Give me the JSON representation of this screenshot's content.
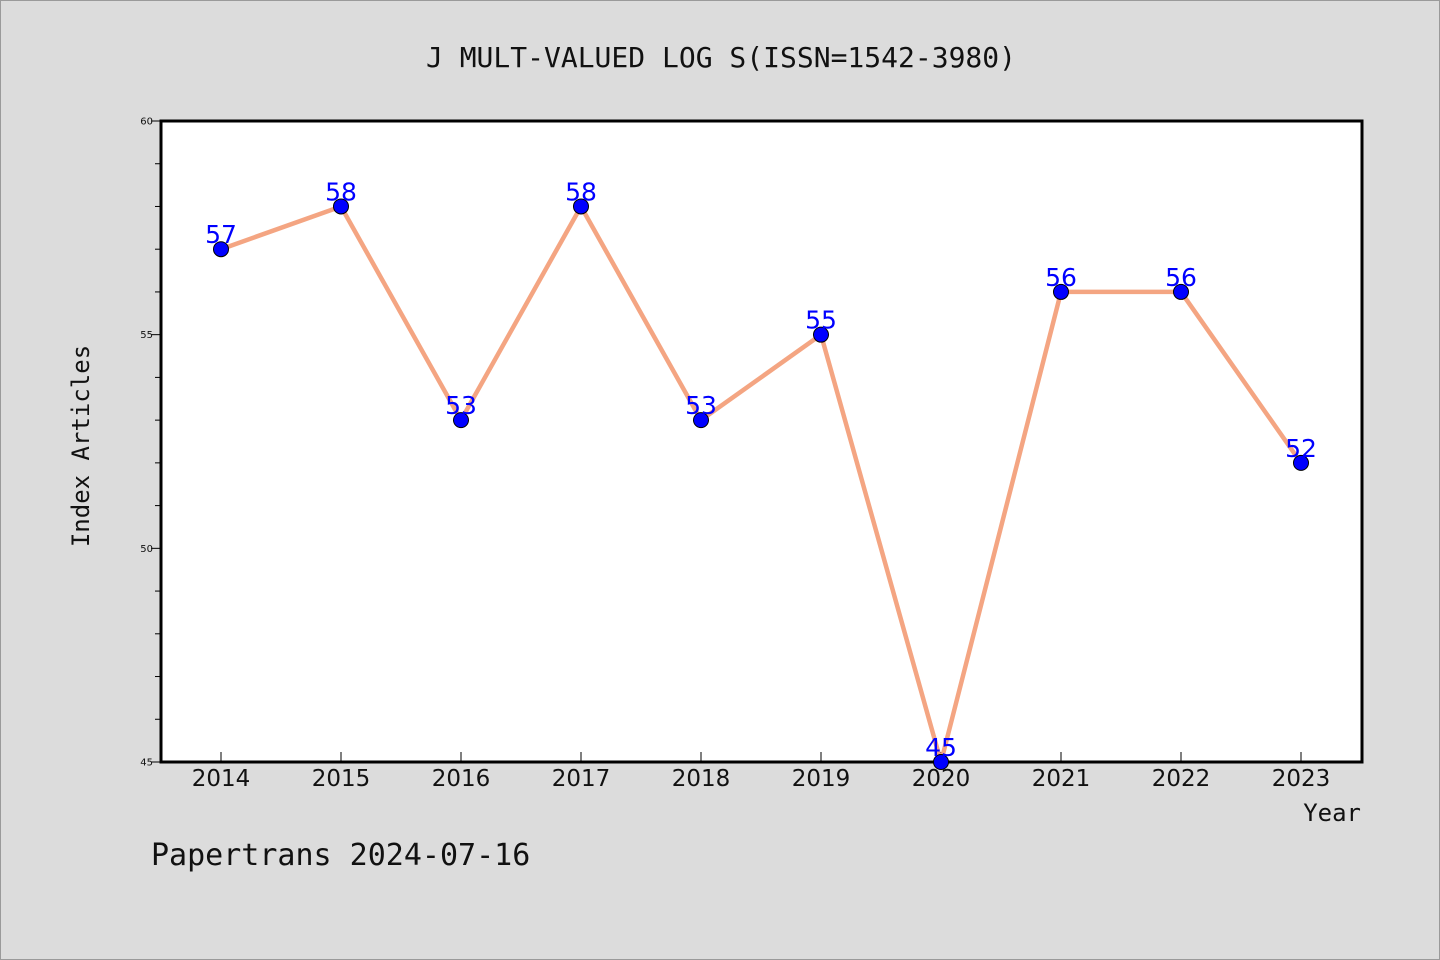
{
  "chart_data": {
    "type": "line",
    "title": "J MULT-VALUED LOG S(ISSN=1542-3980)",
    "xlabel": "Year",
    "ylabel": "Index Articles",
    "categories": [
      "2014",
      "2015",
      "2016",
      "2017",
      "2018",
      "2019",
      "2020",
      "2021",
      "2022",
      "2023"
    ],
    "series": [
      {
        "values": [
          57,
          58,
          53,
          58,
          53,
          55,
          45,
          56,
          56,
          52
        ]
      }
    ],
    "ylim": [
      45,
      60
    ],
    "yticks": [
      "45",
      "50",
      "55",
      "60"
    ],
    "grid": false,
    "data_labels": true
  },
  "footer": "Papertrans 2024-07-16",
  "colors": {
    "background": "#dcdcdc",
    "plot_area": "#ffffff",
    "line": "#f4a582",
    "marker": "#0000ff",
    "data_label": "#0000ff"
  }
}
